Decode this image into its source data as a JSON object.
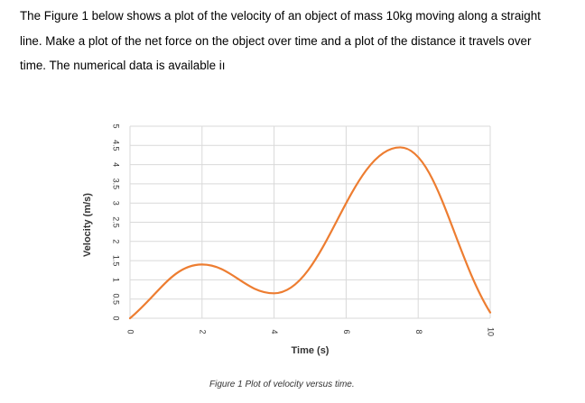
{
  "problem_text": {
    "lines": [
      "The Figure 1 below shows a plot of the velocity of an object of mass 10kg moving along a straight",
      "line. Make a plot of the net force on the object over time and a plot of the distance it travels over",
      "time. The numerical data is available iı"
    ]
  },
  "figure": {
    "caption": "Figure 1 Plot of velocity versus time.",
    "line_color": "#ED7D31",
    "grid_color": "#D9D9D9"
  },
  "chart_data": {
    "type": "line",
    "title": "",
    "xlabel": "Time (s)",
    "ylabel": "Velocity (m/s)",
    "xlim": [
      0,
      10
    ],
    "ylim": [
      0,
      5
    ],
    "x_ticks": [
      "0",
      "2",
      "4",
      "6",
      "8",
      "10"
    ],
    "y_ticks": [
      "0",
      "0.5",
      "1",
      "1.5",
      "2",
      "2.5",
      "3",
      "3.5",
      "4",
      "4.5",
      "5"
    ],
    "grid": true,
    "legend": "none",
    "series": [
      {
        "x": [
          0,
          2,
          4,
          7.5,
          10
        ],
        "y": [
          0,
          1.4,
          0.65,
          4.45,
          0.15
        ]
      }
    ]
  }
}
